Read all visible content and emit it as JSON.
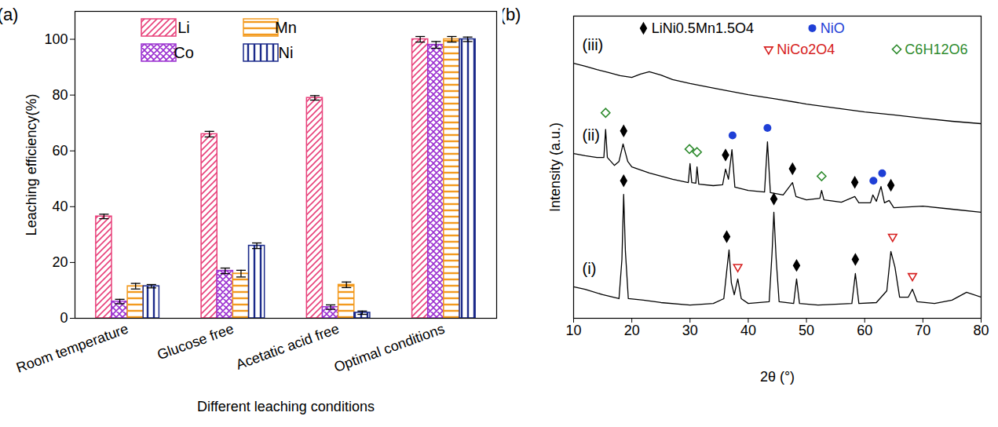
{
  "chart_data": [
    {
      "type": "bar",
      "title": "(a)",
      "x_label": "Different leaching conditions",
      "y_label": "Leaching efficiency(%)",
      "categories": [
        "Room temperature",
        "Glucose free",
        "Acetatic acid free",
        "Optimal conditions"
      ],
      "series": [
        {
          "name": "Li",
          "color": "#e8407a",
          "values": [
            36.5,
            66,
            79,
            100
          ],
          "errors": [
            0.8,
            1,
            0.8,
            1
          ]
        },
        {
          "name": "Co",
          "color": "#9b30d0",
          "values": [
            6,
            17,
            4,
            98
          ],
          "errors": [
            0.8,
            1,
            0.8,
            1.2
          ]
        },
        {
          "name": "Mn",
          "color": "#f39a1e",
          "values": [
            11.5,
            16,
            12,
            100
          ],
          "errors": [
            1,
            1.2,
            1,
            1
          ]
        },
        {
          "name": "Ni",
          "color": "#1b2a8a",
          "values": [
            11.5,
            26,
            2,
            100
          ],
          "errors": [
            0.6,
            1,
            0.6,
            0.8
          ]
        }
      ],
      "ylim": [
        0,
        110
      ],
      "yticks": [
        0,
        20,
        40,
        60,
        80,
        100
      ],
      "legend": "top-left"
    },
    {
      "type": "line",
      "title": "(b)",
      "x_label": "2θ (°)",
      "y_label": "Intensity (a.u.)",
      "xlim": [
        10,
        80
      ],
      "xticks": [
        10,
        20,
        30,
        40,
        50,
        60,
        70,
        80
      ],
      "ylim": [
        0,
        100
      ],
      "yticks": [],
      "tick_labels": "x",
      "series": [
        {
          "name": "(i)",
          "color": "#000000",
          "x": [
            10,
            12,
            15,
            17.8,
            18.3,
            18.6,
            18.9,
            19.4,
            22,
            25,
            30,
            34,
            35.8,
            36.3,
            36.7,
            37.1,
            37.6,
            38.2,
            38.8,
            40,
            43.6,
            44.1,
            44.4,
            44.8,
            45.3,
            47.8,
            48.3,
            48.8,
            52,
            57.8,
            58.4,
            59,
            62,
            63.8,
            64.5,
            65.2,
            66,
            67.5,
            68.2,
            69,
            72,
            75,
            77.5,
            80
          ],
          "values": [
            10.4,
            9.6,
            7.8,
            6.5,
            19.5,
            41,
            22.1,
            6.5,
            6,
            5.2,
            4.4,
            4.9,
            6.5,
            15.6,
            22.6,
            11.7,
            7.8,
            13,
            6.5,
            4.9,
            5.5,
            22.1,
            35.1,
            19.5,
            5.5,
            4.9,
            13,
            4.9,
            4.4,
            4.9,
            14.8,
            4.9,
            5.2,
            9.1,
            22.1,
            16.9,
            7,
            7,
            9.6,
            5.5,
            4.9,
            6,
            8.6,
            7
          ]
        },
        {
          "name": "(ii)",
          "color": "#000000",
          "x": [
            10,
            12,
            14,
            15.2,
            15.5,
            15.8,
            17,
            17.8,
            18.5,
            19.3,
            20,
            23,
            27,
            29.7,
            30,
            30.3,
            31,
            31.2,
            31.5,
            34,
            35.6,
            36.1,
            36.6,
            37.2,
            37.7,
            40,
            42.8,
            43.3,
            43.8,
            46,
            47.6,
            48.2,
            50,
            52.3,
            52.6,
            53,
            56,
            58.3,
            59,
            61,
            61.4,
            62,
            62.8,
            63.4,
            64.2,
            65,
            70,
            75,
            80
          ],
          "values": [
            54.5,
            53.8,
            53.2,
            53.2,
            62.5,
            53.2,
            50.6,
            51.9,
            57.7,
            51.9,
            50.1,
            48.1,
            46,
            44.9,
            51.2,
            44.9,
            44.7,
            50.1,
            44.4,
            43.9,
            44.2,
            49.4,
            46,
            55.8,
            43.4,
            42.3,
            41.8,
            58.4,
            41.6,
            40.8,
            44.9,
            40.3,
            39.2,
            39.7,
            42.3,
            39.2,
            38.4,
            40.3,
            38.2,
            38.2,
            40.8,
            38.7,
            43.6,
            38.2,
            39,
            36.6,
            37.1,
            36.1,
            35.1
          ]
        },
        {
          "name": "(iii)",
          "color": "#000000",
          "x": [
            10,
            12,
            14,
            16,
            18,
            20,
            21.5,
            23,
            25,
            27,
            30,
            35,
            40,
            45,
            50,
            55,
            60,
            65,
            70,
            75,
            80
          ],
          "values": [
            84.4,
            83.4,
            82.3,
            81.3,
            80.3,
            79.7,
            80.8,
            81.6,
            80.5,
            79,
            77.7,
            75.8,
            74,
            72.5,
            70.9,
            69.6,
            68.3,
            67.3,
            66.2,
            65.2,
            64.4
          ]
        }
      ],
      "phases": [
        {
          "name": "LiNi0.5Mn1.5O4",
          "color": "#000000",
          "marker": "diamond",
          "x": [
            18.6,
            36.3,
            44.4,
            48.3,
            58.4,
            18.6,
            36.1,
            47.6,
            58.3,
            64.5
          ],
          "values": [
            45.5,
            27,
            39.5,
            17.5,
            19.5,
            62,
            54,
            49.5,
            45,
            44
          ]
        },
        {
          "name": "NiO",
          "color": "#1f3fd6",
          "marker": "circle",
          "x": [
            37.3,
            43.3,
            61.5,
            63
          ],
          "values": [
            60.5,
            63,
            45.5,
            48
          ]
        },
        {
          "name": "NiCo2O4",
          "color": "#d62020",
          "marker": "triangle-down",
          "x": [
            38.2,
            64.8,
            68.2
          ],
          "values": [
            17,
            27,
            14
          ]
        },
        {
          "name": "C6H12O6",
          "color": "#2e8b2e",
          "marker": "diamond-open",
          "x": [
            15.5,
            29.9,
            31.2,
            52.6
          ],
          "values": [
            68,
            56,
            55,
            47
          ]
        }
      ]
    }
  ]
}
